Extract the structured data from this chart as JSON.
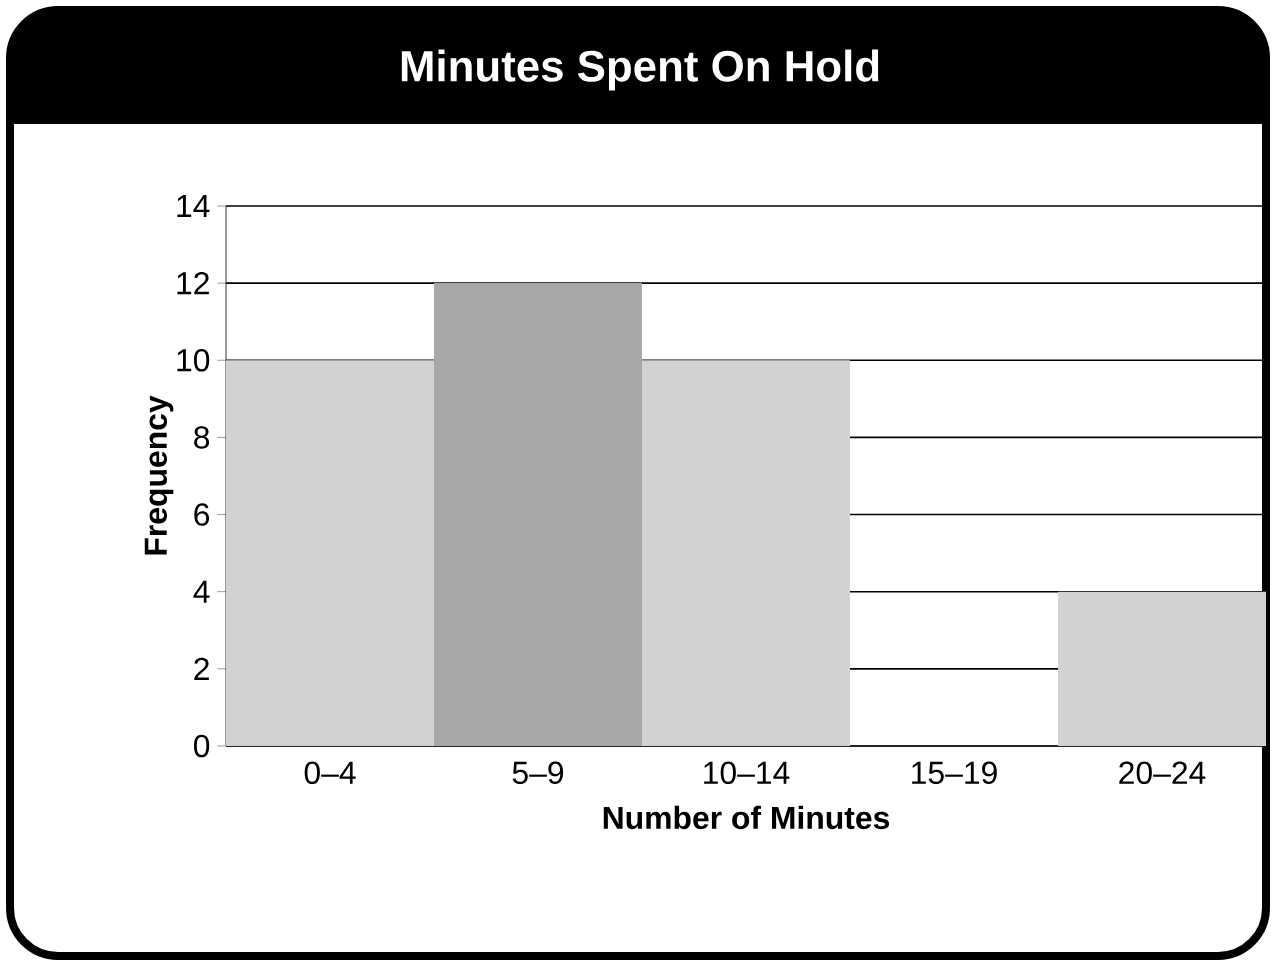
{
  "chart_data": {
    "type": "bar",
    "title": "Minutes Spent On Hold",
    "xlabel": "Number of Minutes",
    "ylabel": "Frequency",
    "categories": [
      "0–4",
      "5–9",
      "10–14",
      "15–19",
      "20–24"
    ],
    "values": [
      10,
      12,
      10,
      0,
      4
    ],
    "colors": [
      "#d1d2d4",
      "#a7a8aa",
      "#d1d2d4",
      "#d1d2d4",
      "#d1d2d4"
    ],
    "ylim": [
      0,
      14
    ],
    "yticks": [
      0,
      2,
      4,
      6,
      8,
      10,
      12,
      14
    ],
    "grid": "y"
  }
}
